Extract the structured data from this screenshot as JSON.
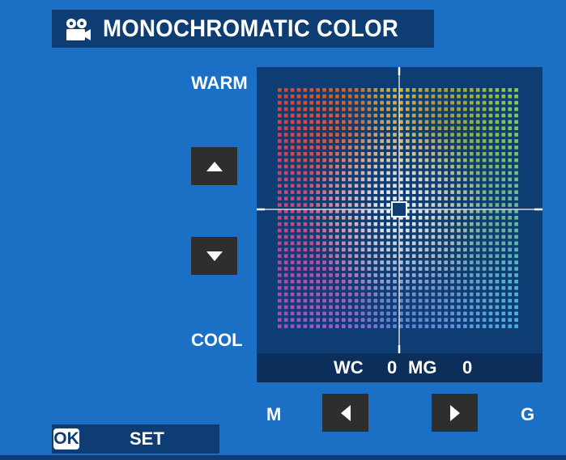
{
  "header": {
    "title": "MONOCHROMATIC COLOR",
    "icon": "movie-camera-icon"
  },
  "axis": {
    "top_label": "WARM",
    "bottom_label": "COOL",
    "left_label": "M",
    "right_label": "G"
  },
  "controls": {
    "up_icon": "triangle-up-icon",
    "down_icon": "triangle-down-icon",
    "left_icon": "triangle-left-icon",
    "right_icon": "triangle-right-icon"
  },
  "readout": {
    "wc_label": "WC",
    "wc_value": "0",
    "mg_label": "MG",
    "mg_value": "0"
  },
  "footer": {
    "ok_label": "OK",
    "set_label": "SET"
  },
  "colors": {
    "background": "#1b6fc4",
    "panel": "#0e3d73",
    "button": "#2e2e2e",
    "text": "#ffffff"
  }
}
